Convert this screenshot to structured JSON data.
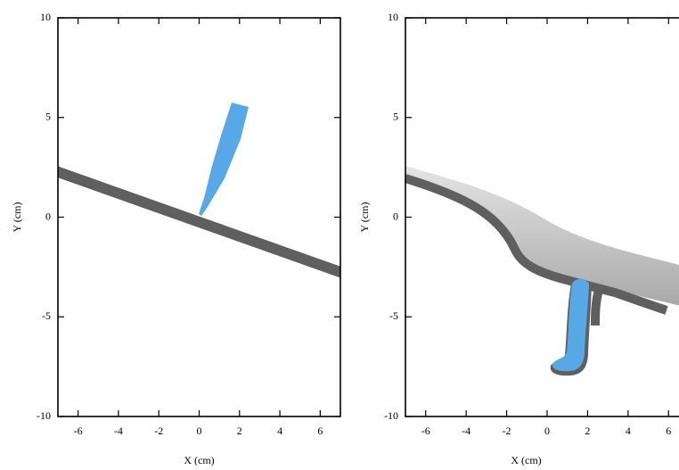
{
  "chart_data": [
    {
      "type": "snapshot",
      "xlabel": "X (cm)",
      "ylabel": "Y (cm)",
      "xlim": [
        -7,
        7
      ],
      "ylim": [
        -10,
        10
      ],
      "xticks": [
        -6,
        -4,
        -2,
        0,
        2,
        4,
        6
      ],
      "yticks": [
        -10,
        -5,
        0,
        5,
        10
      ]
    },
    {
      "type": "snapshot",
      "xlabel": "X (cm)",
      "ylabel": "Y (cm)",
      "xlim": [
        -7,
        7
      ],
      "ylim": [
        -10,
        10
      ],
      "xticks": [
        -6,
        -4,
        -2,
        0,
        2,
        4,
        6
      ],
      "yticks": [
        -10,
        -5,
        0,
        5,
        10
      ]
    }
  ]
}
